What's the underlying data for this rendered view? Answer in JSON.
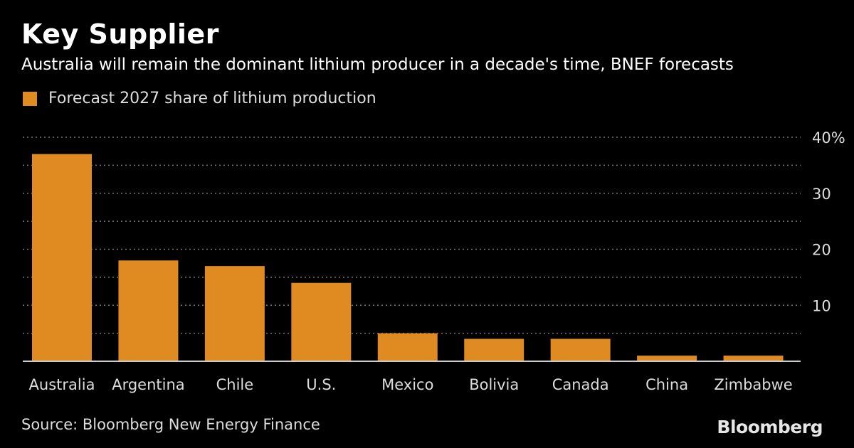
{
  "header": {
    "title": "Key Supplier",
    "subtitle": "Australia will remain the dominant lithium producer in a decade's time, BNEF forecasts"
  },
  "footer": {
    "source": "Source: Bloomberg New Energy Finance",
    "brand": "Bloomberg"
  },
  "colors": {
    "bar": "#e08a22",
    "grid": "#777777",
    "axis": "#cccccc"
  },
  "chart_data": {
    "type": "bar",
    "title": "Key Supplier",
    "subtitle": "Australia will remain the dominant lithium producer in a decade's time, BNEF forecasts",
    "categories": [
      "Australia",
      "Argentina",
      "Chile",
      "U.S.",
      "Mexico",
      "Bolivia",
      "Canada",
      "China",
      "Zimbabwe"
    ],
    "series": [
      {
        "name": "Forecast 2027 share of lithium production",
        "values": [
          37,
          18,
          17,
          14,
          5,
          4,
          4,
          1,
          1
        ]
      }
    ],
    "ylim": [
      0,
      40
    ],
    "yticks": [
      10,
      20,
      30,
      40
    ],
    "ytick_labels": [
      "10",
      "20",
      "30",
      "40%"
    ],
    "y_axis_position": "right",
    "grid": true,
    "legend": "top-left"
  }
}
